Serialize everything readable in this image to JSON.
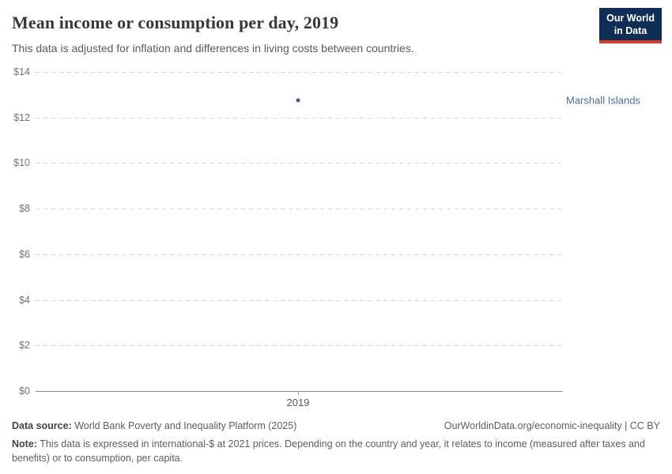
{
  "header": {
    "title": "Mean income or consumption per day, 2019",
    "subtitle": "This data is adjusted for inflation and differences in living costs between countries.",
    "logo_line1": "Our World",
    "logo_line2": "in Data"
  },
  "chart_data": {
    "type": "scatter",
    "title": "Mean income or consumption per day, 2019",
    "x": [
      2019
    ],
    "xtick_labels": [
      "2019"
    ],
    "series": [
      {
        "name": "Marshall Islands",
        "values": [
          12.75
        ]
      }
    ],
    "xlabel": "",
    "ylabel": "",
    "ylim": [
      0,
      14
    ],
    "yticks": [
      0,
      2,
      4,
      6,
      8,
      10,
      12,
      14
    ],
    "ytick_prefix": "$",
    "grid": "horizontal-dashed",
    "legend_position": "point-label-right",
    "point_color": "#3d5a8f",
    "label_color": "#4c6a9c"
  },
  "colors": {
    "logo_background": "#0e2e55",
    "logo_accent_red": "#dc3a2b",
    "axis_line": "#8f8f8f",
    "gridline": "#d9d9d9"
  },
  "footer": {
    "datasource_label": "Data source:",
    "datasource_text": " World Bank Poverty and Inequality Platform (2025)",
    "link_text": "OurWorldinData.org/economic-inequality | CC BY",
    "note_label": "Note:",
    "note_text": " This data is expressed in international-$ at 2021 prices. Depending on the country and year, it relates to income (measured after taxes and benefits) or to consumption, per capita."
  }
}
